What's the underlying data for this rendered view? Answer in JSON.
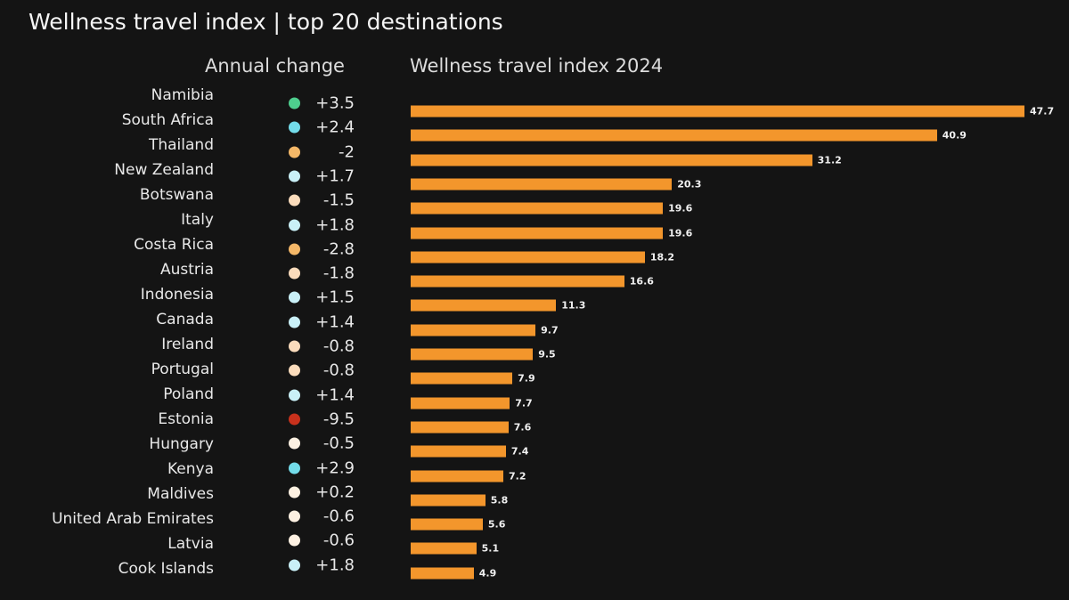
{
  "chart_data": {
    "type": "bar",
    "title": "Wellness travel index | top 20 destinations",
    "change_header": "Annual change",
    "index_header": "Wellness travel index 2024",
    "xlim": [
      0,
      47.7
    ],
    "colors": {
      "bar": "#f3962c",
      "strong_positive": "#4ecf8e",
      "positive": "#73dcea",
      "mild_positive": "#c9f0f7",
      "mild_negative": "#fbdcbc",
      "negative": "#f5b868",
      "very_negative": "#c8311c",
      "neutral": "#fdf1e2"
    },
    "rows": [
      {
        "country": "Namibia",
        "change": "+3.5",
        "value": 47.7,
        "dot": "strong_positive"
      },
      {
        "country": "South Africa",
        "change": "+2.4",
        "value": 40.9,
        "dot": "positive"
      },
      {
        "country": "Thailand",
        "change": "-2",
        "value": 31.2,
        "dot": "negative"
      },
      {
        "country": "New Zealand",
        "change": "+1.7",
        "value": 20.3,
        "dot": "mild_positive"
      },
      {
        "country": "Botswana",
        "change": "-1.5",
        "value": 19.6,
        "dot": "mild_negative"
      },
      {
        "country": "Italy",
        "change": "+1.8",
        "value": 19.6,
        "dot": "mild_positive"
      },
      {
        "country": "Costa Rica",
        "change": "-2.8",
        "value": 18.2,
        "dot": "negative"
      },
      {
        "country": "Austria",
        "change": "-1.8",
        "value": 16.6,
        "dot": "mild_negative"
      },
      {
        "country": "Indonesia",
        "change": "+1.5",
        "value": 11.3,
        "dot": "mild_positive"
      },
      {
        "country": "Canada",
        "change": "+1.4",
        "value": 9.7,
        "dot": "mild_positive"
      },
      {
        "country": "Ireland",
        "change": "-0.8",
        "value": 9.5,
        "dot": "mild_negative"
      },
      {
        "country": "Portugal",
        "change": "-0.8",
        "value": 7.9,
        "dot": "mild_negative"
      },
      {
        "country": "Poland",
        "change": "+1.4",
        "value": 7.7,
        "dot": "mild_positive"
      },
      {
        "country": "Estonia",
        "change": "-9.5",
        "value": 7.6,
        "dot": "very_negative"
      },
      {
        "country": "Hungary",
        "change": "-0.5",
        "value": 7.4,
        "dot": "neutral"
      },
      {
        "country": "Kenya",
        "change": "+2.9",
        "value": 7.2,
        "dot": "positive"
      },
      {
        "country": "Maldives",
        "change": "+0.2",
        "value": 5.8,
        "dot": "neutral"
      },
      {
        "country": "United Arab Emirates",
        "change": "-0.6",
        "value": 5.6,
        "dot": "neutral"
      },
      {
        "country": "Latvia",
        "change": "-0.6",
        "value": 5.1,
        "dot": "neutral"
      },
      {
        "country": "Cook Islands",
        "change": "+1.8",
        "value": 4.9,
        "dot": "mild_positive"
      }
    ]
  }
}
